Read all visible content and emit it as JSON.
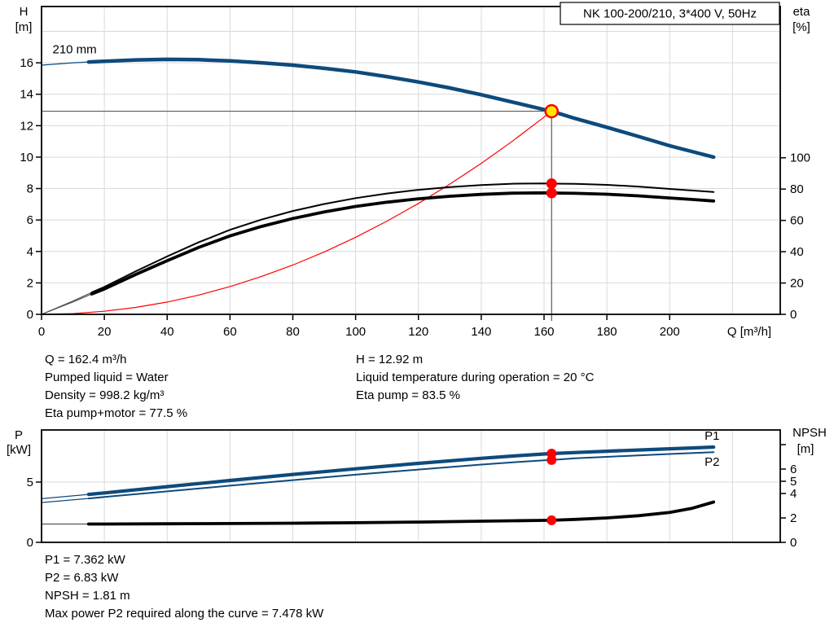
{
  "report": {
    "operating_info_left": [
      "Q = 162.4 m³/h",
      "Pumped liquid = Water",
      "Density = 998.2 kg/m³",
      "Eta pump+motor = 77.5 %"
    ],
    "operating_info_right": [
      "H = 12.92 m",
      "Liquid temperature during operation = 20 °C",
      "Eta pump = 83.5 %"
    ],
    "power_info": [
      "P1 = 7.362 kW",
      "P2 = 6.83 kW",
      "NPSH = 1.81 m",
      "Max power P2 required along the curve = 7.478 kW"
    ]
  },
  "colors": {
    "curve_blue": "#0e4a7c",
    "curve_black": "#000000",
    "curve_lead_gray": "#555555",
    "system_red": "#ff0000",
    "marker_red": "#ff0000",
    "marker_yellow": "#ffe800",
    "grid_gray": "#d9d9d9",
    "guide_gray": "#5a5a5a",
    "axis_black": "#000000"
  },
  "chart_data": [
    {
      "type": "line",
      "name": "qh-eta-chart",
      "title": "NK 100-200/210, 3*400 V, 50Hz",
      "x": {
        "label": "Q [m³/h]",
        "range": [
          0,
          235.2
        ],
        "ticks": [
          0,
          20,
          40,
          60,
          80,
          100,
          120,
          140,
          160,
          180,
          200
        ],
        "grid": [
          20,
          40,
          60,
          80,
          100,
          120,
          140,
          160,
          180,
          200,
          220
        ]
      },
      "y_left": {
        "label": [
          "H",
          "[m]"
        ],
        "range": [
          0,
          19.58
        ],
        "ticks": [
          0,
          2,
          4,
          6,
          8,
          10,
          12,
          14,
          16
        ],
        "grid": [
          2,
          4,
          6,
          8,
          10,
          12,
          14,
          16,
          18
        ]
      },
      "y_right": {
        "label": [
          "eta",
          "[%]"
        ],
        "range": [
          0,
          196.6
        ],
        "ticks": [
          0,
          20,
          40,
          60,
          80,
          100
        ]
      },
      "series": [
        {
          "name": "head-curve-210mm",
          "axis": "left",
          "color": "#0e4a7c",
          "width": 4.5,
          "thin_until": 15,
          "lead_width": 1.2,
          "points": [
            [
              0,
              15.85
            ],
            [
              10,
              16.0
            ],
            [
              15,
              16.05
            ],
            [
              20,
              16.1
            ],
            [
              30,
              16.18
            ],
            [
              40,
              16.22
            ],
            [
              50,
              16.2
            ],
            [
              60,
              16.12
            ],
            [
              70,
              16.0
            ],
            [
              80,
              15.85
            ],
            [
              90,
              15.65
            ],
            [
              100,
              15.42
            ],
            [
              110,
              15.12
            ],
            [
              120,
              14.78
            ],
            [
              130,
              14.4
            ],
            [
              140,
              13.97
            ],
            [
              150,
              13.5
            ],
            [
              160,
              13.02
            ],
            [
              162.4,
              12.92
            ],
            [
              170,
              12.45
            ],
            [
              180,
              11.9
            ],
            [
              190,
              11.32
            ],
            [
              200,
              10.72
            ],
            [
              207,
              10.36
            ],
            [
              214,
              10.0
            ]
          ]
        },
        {
          "name": "system-curve",
          "axis": "left",
          "color": "#ff0000",
          "width": 1.2,
          "points": [
            [
              0,
              0
            ],
            [
              10,
              0.049
            ],
            [
              20,
              0.196
            ],
            [
              30,
              0.441
            ],
            [
              40,
              0.784
            ],
            [
              50,
              1.225
            ],
            [
              60,
              1.764
            ],
            [
              70,
              2.401
            ],
            [
              80,
              3.136
            ],
            [
              90,
              3.969
            ],
            [
              100,
              4.9
            ],
            [
              110,
              5.929
            ],
            [
              120,
              7.056
            ],
            [
              130,
              8.281
            ],
            [
              140,
              9.604
            ],
            [
              150,
              11.025
            ],
            [
              160,
              12.544
            ],
            [
              162.4,
              12.92
            ]
          ]
        },
        {
          "name": "eta-pump-curve",
          "axis": "right",
          "color": "#000000",
          "width": 2,
          "thin_until": 16,
          "lead_width": 1.2,
          "lead_color": "#555555",
          "points": [
            [
              0,
              0
            ],
            [
              10,
              8.5
            ],
            [
              16,
              14
            ],
            [
              20,
              17.5
            ],
            [
              30,
              27.5
            ],
            [
              40,
              37
            ],
            [
              50,
              46
            ],
            [
              60,
              54
            ],
            [
              70,
              60.5
            ],
            [
              80,
              66
            ],
            [
              90,
              70.5
            ],
            [
              100,
              74.2
            ],
            [
              110,
              77.2
            ],
            [
              120,
              79.5
            ],
            [
              130,
              81.3
            ],
            [
              140,
              82.6
            ],
            [
              150,
              83.4
            ],
            [
              160,
              83.6
            ],
            [
              162.4,
              83.5
            ],
            [
              170,
              83.3
            ],
            [
              180,
              82.7
            ],
            [
              190,
              81.6
            ],
            [
              200,
              80.1
            ],
            [
              207,
              79.1
            ],
            [
              214,
              78.1
            ]
          ]
        },
        {
          "name": "eta-pump-motor-curve",
          "axis": "right",
          "color": "#000000",
          "width": 3.8,
          "thin_until": 16,
          "lead_width": 1.2,
          "lead_color": "#555555",
          "points": [
            [
              0,
              0
            ],
            [
              10,
              7.9
            ],
            [
              16,
              13
            ],
            [
              20,
              16.2
            ],
            [
              30,
              25.5
            ],
            [
              40,
              34.3
            ],
            [
              50,
              42.7
            ],
            [
              60,
              50.1
            ],
            [
              70,
              56.1
            ],
            [
              80,
              61.2
            ],
            [
              90,
              65.4
            ],
            [
              100,
              68.9
            ],
            [
              110,
              71.6
            ],
            [
              120,
              73.8
            ],
            [
              130,
              75.4
            ],
            [
              140,
              76.6
            ],
            [
              150,
              77.4
            ],
            [
              160,
              77.6
            ],
            [
              162.4,
              77.5
            ],
            [
              170,
              77.3
            ],
            [
              180,
              76.7
            ],
            [
              190,
              75.7
            ],
            [
              200,
              74.3
            ],
            [
              207,
              73.4
            ],
            [
              214,
              72.4
            ]
          ]
        }
      ],
      "crosshair": {
        "q": 162.4,
        "v": 12.92,
        "axis": "left"
      },
      "markers": [
        {
          "name": "duty-point-marker",
          "q": 162.4,
          "v": 12.92,
          "axis": "left",
          "r": 7.5,
          "fill": "#ffe800",
          "stroke": "#ff0000",
          "stroke_width": 2.5
        },
        {
          "name": "eta-pump-point",
          "q": 162.4,
          "v": 83.5,
          "axis": "right",
          "r": 6.5,
          "fill": "#ff0000"
        },
        {
          "name": "eta-pump-motor-point",
          "q": 162.4,
          "v": 77.5,
          "axis": "right",
          "r": 6.5,
          "fill": "#ff0000"
        }
      ],
      "annotations": [
        {
          "name": "impeller-size-label",
          "text": "210 mm",
          "q": 3.5,
          "v": 16.6,
          "axis": "left",
          "anchor": "start",
          "color": "#000000"
        }
      ]
    },
    {
      "type": "line",
      "name": "power-npsh-chart",
      "x": {
        "label": "",
        "range": [
          0,
          235.2
        ],
        "ticks": [],
        "grid": [
          20,
          40,
          60,
          80,
          100,
          120,
          140,
          160,
          180,
          200,
          220
        ]
      },
      "y_left": {
        "label": [
          "P",
          "[kW]"
        ],
        "range": [
          0,
          9.32
        ],
        "ticks": [
          0,
          5
        ],
        "grid": [
          5
        ]
      },
      "y_right": {
        "label": [
          "NPSH",
          "[m]"
        ],
        "range": [
          0,
          9.2
        ],
        "ticks": [
          0,
          2,
          4,
          5,
          6,
          8
        ],
        "unlabeled": [
          8
        ]
      },
      "series": [
        {
          "name": "p1-curve",
          "axis": "left",
          "color": "#0e4a7c",
          "width": 4.2,
          "thin_until": 15,
          "lead_width": 1.2,
          "points": [
            [
              0,
              3.62
            ],
            [
              15,
              3.98
            ],
            [
              20,
              4.1
            ],
            [
              40,
              4.62
            ],
            [
              60,
              5.13
            ],
            [
              80,
              5.63
            ],
            [
              100,
              6.1
            ],
            [
              120,
              6.55
            ],
            [
              140,
              6.97
            ],
            [
              150,
              7.16
            ],
            [
              160,
              7.33
            ],
            [
              162.4,
              7.362
            ],
            [
              170,
              7.45
            ],
            [
              180,
              7.56
            ],
            [
              190,
              7.66
            ],
            [
              200,
              7.76
            ],
            [
              207,
              7.83
            ],
            [
              214,
              7.9
            ]
          ]
        },
        {
          "name": "p2-curve",
          "axis": "left",
          "color": "#0e4a7c",
          "width": 2,
          "thin_until": 15,
          "lead_width": 1.2,
          "points": [
            [
              0,
              3.3
            ],
            [
              15,
              3.64
            ],
            [
              20,
              3.76
            ],
            [
              40,
              4.23
            ],
            [
              60,
              4.7
            ],
            [
              80,
              5.16
            ],
            [
              100,
              5.61
            ],
            [
              120,
              6.04
            ],
            [
              140,
              6.45
            ],
            [
              150,
              6.64
            ],
            [
              160,
              6.81
            ],
            [
              162.4,
              6.83
            ],
            [
              170,
              6.97
            ],
            [
              180,
              7.09
            ],
            [
              190,
              7.21
            ],
            [
              200,
              7.33
            ],
            [
              207,
              7.4
            ],
            [
              214,
              7.478
            ]
          ]
        },
        {
          "name": "npsh-curve",
          "axis": "right",
          "color": "#000000",
          "width": 3.8,
          "thin_until": 15,
          "lead_width": 1.2,
          "lead_color": "#555555",
          "points": [
            [
              0,
              1.5
            ],
            [
              15,
              1.5
            ],
            [
              20,
              1.5
            ],
            [
              40,
              1.52
            ],
            [
              60,
              1.54
            ],
            [
              80,
              1.57
            ],
            [
              100,
              1.61
            ],
            [
              120,
              1.66
            ],
            [
              140,
              1.73
            ],
            [
              150,
              1.77
            ],
            [
              160,
              1.8
            ],
            [
              162.4,
              1.81
            ],
            [
              170,
              1.88
            ],
            [
              180,
              2.0
            ],
            [
              190,
              2.18
            ],
            [
              200,
              2.45
            ],
            [
              207,
              2.78
            ],
            [
              214,
              3.3
            ]
          ]
        }
      ],
      "markers": [
        {
          "name": "p1-point",
          "q": 162.4,
          "v": 7.362,
          "axis": "left",
          "r": 6,
          "fill": "#ff0000"
        },
        {
          "name": "p2-point",
          "q": 162.4,
          "v": 6.83,
          "axis": "left",
          "r": 6,
          "fill": "#ff0000"
        },
        {
          "name": "npsh-point",
          "q": 162.4,
          "v": 1.81,
          "axis": "right",
          "r": 6,
          "fill": "#ff0000"
        }
      ],
      "annotations": [
        {
          "name": "p1-label",
          "text": "P1",
          "q": 213.5,
          "v": 8.51,
          "axis": "left",
          "anchor": "middle",
          "color": "#0e4a7c"
        },
        {
          "name": "p2-label",
          "text": "P2",
          "q": 213.5,
          "v": 6.35,
          "axis": "left",
          "anchor": "middle",
          "color": "#0e4a7c"
        }
      ]
    }
  ]
}
